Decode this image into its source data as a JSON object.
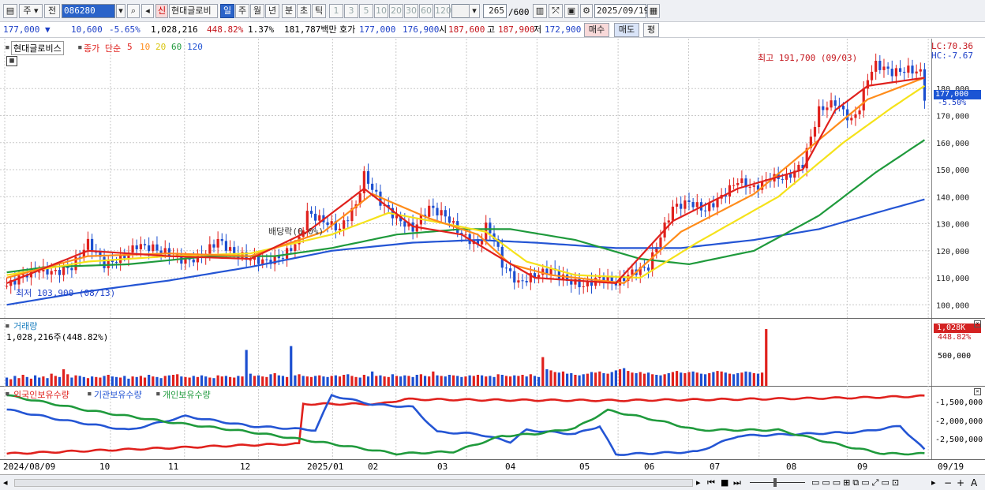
{
  "toolbar": {
    "mode1": "주",
    "mode2": "전",
    "code": "086280",
    "stock_name": "현대글로비",
    "tag": "신",
    "periods": [
      "일",
      "주",
      "월",
      "년",
      "분",
      "초",
      "틱"
    ],
    "minutes": [
      "1",
      "3",
      "5",
      "10",
      "20",
      "30",
      "60",
      "120"
    ],
    "count": "265",
    "count_max": "/600",
    "date": "2025/09/19"
  },
  "quote": {
    "price": "177,000",
    "arrow": "▼",
    "change": "10,600",
    "change_pct": "-5.65%",
    "volume": "1,028,216",
    "vol_ratio": "448.82%",
    "turnover": "1.37%",
    "amount": "181,787백만",
    "hoga_label": "호가",
    "ask": "177,000",
    "bid": "176,900",
    "open_label": "시",
    "open": "187,600",
    "high_label": "고",
    "high": "187,900",
    "low_label": "저",
    "low": "172,900",
    "buy_button": "매수",
    "sell_button": "매도",
    "eval_button": "평"
  },
  "price_panel": {
    "name": "현대글로비스",
    "legend_label": "종가 단순",
    "ma_periods": [
      "5",
      "10",
      "20",
      "60",
      "120"
    ],
    "ma_colors": [
      "#e0211d",
      "#ff8c1a",
      "#f5e21a",
      "#1f9a3c",
      "#2455d4"
    ],
    "lc": "LC:70.36",
    "hc": "HC:-7.67",
    "current": "177,000",
    "current_pct": "-5.50%",
    "max_label": "최고 191,700 (09/03)",
    "min_label": "최저 103,900 (08/13)",
    "dividend_label": "배당락(0.0%)",
    "y_ticks": [
      "180,000",
      "170,000",
      "160,000",
      "150,000",
      "140,000",
      "130,000",
      "120,000",
      "110,000",
      "100,000"
    ]
  },
  "volume_panel": {
    "title": "거래량",
    "info": "1,028,216주(448.82%)",
    "current": "1,028K",
    "current_pct": "448.82%",
    "tick": "500,000"
  },
  "holding_panel": {
    "series_labels": [
      "외국인보유수량",
      "기관보유수량",
      "개인보유수량"
    ],
    "series_colors": [
      "#e0211d",
      "#2455d4",
      "#1f9a3c"
    ],
    "ticks": [
      "-1,500,000",
      "-2,000,000",
      "-2,500,000"
    ]
  },
  "x_axis": {
    "labels": [
      "2024/08/09",
      "10",
      "11",
      "12",
      "2025/01",
      "02",
      "03",
      "04",
      "05",
      "06",
      "07",
      "08",
      "09"
    ],
    "end_label": "09/19"
  },
  "chart_data": {
    "type": "candlestick",
    "title": "현대글로비스",
    "ylim": [
      96000,
      197000
    ],
    "y_ticks": [
      100000,
      110000,
      120000,
      130000,
      140000,
      150000,
      160000,
      170000,
      180000
    ],
    "months": [
      "2024/08",
      "10",
      "11",
      "12",
      "2025/01",
      "02",
      "03",
      "04",
      "05",
      "06",
      "07",
      "08",
      "09"
    ],
    "close_path": [
      [
        0,
        107000
      ],
      [
        4,
        111000
      ],
      [
        8,
        113000
      ],
      [
        12,
        112000
      ],
      [
        16,
        114000
      ],
      [
        20,
        123000
      ],
      [
        24,
        115000
      ],
      [
        28,
        117000
      ],
      [
        32,
        122000
      ],
      [
        36,
        121000
      ],
      [
        40,
        119000
      ],
      [
        44,
        116000
      ],
      [
        48,
        118000
      ],
      [
        52,
        124000
      ],
      [
        56,
        119000
      ],
      [
        60,
        117000
      ],
      [
        64,
        116000
      ],
      [
        68,
        118000
      ],
      [
        72,
        124000
      ],
      [
        74,
        134000
      ],
      [
        78,
        131000
      ],
      [
        82,
        128000
      ],
      [
        86,
        137000
      ],
      [
        88,
        148000
      ],
      [
        92,
        138000
      ],
      [
        96,
        132000
      ],
      [
        100,
        128000
      ],
      [
        104,
        136000
      ],
      [
        108,
        133000
      ],
      [
        112,
        126000
      ],
      [
        116,
        122000
      ],
      [
        118,
        129000
      ],
      [
        120,
        125000
      ],
      [
        122,
        115000
      ],
      [
        126,
        108000
      ],
      [
        130,
        111000
      ],
      [
        134,
        113000
      ],
      [
        138,
        109000
      ],
      [
        142,
        107000
      ],
      [
        146,
        110000
      ],
      [
        150,
        108000
      ],
      [
        154,
        112000
      ],
      [
        158,
        114000
      ],
      [
        160,
        122000
      ],
      [
        164,
        136000
      ],
      [
        168,
        138000
      ],
      [
        172,
        135000
      ],
      [
        176,
        140000
      ],
      [
        180,
        146000
      ],
      [
        184,
        143000
      ],
      [
        188,
        147000
      ],
      [
        192,
        147000
      ],
      [
        196,
        152000
      ],
      [
        200,
        172000
      ],
      [
        204,
        175000
      ],
      [
        208,
        168000
      ],
      [
        210,
        173000
      ],
      [
        212,
        184000
      ],
      [
        214,
        189000
      ],
      [
        218,
        186000
      ],
      [
        222,
        187000
      ],
      [
        225,
        186000
      ],
      [
        226,
        177000
      ]
    ],
    "ma5": [
      [
        0,
        108000
      ],
      [
        20,
        120000
      ],
      [
        40,
        118000
      ],
      [
        60,
        117000
      ],
      [
        74,
        127000
      ],
      [
        88,
        143000
      ],
      [
        100,
        129000
      ],
      [
        112,
        126000
      ],
      [
        122,
        117000
      ],
      [
        130,
        110000
      ],
      [
        150,
        108000
      ],
      [
        164,
        131000
      ],
      [
        180,
        143000
      ],
      [
        196,
        150000
      ],
      [
        204,
        172000
      ],
      [
        212,
        181000
      ],
      [
        226,
        184000
      ]
    ],
    "ma10": [
      [
        0,
        110000
      ],
      [
        20,
        118000
      ],
      [
        40,
        119000
      ],
      [
        60,
        118000
      ],
      [
        78,
        127000
      ],
      [
        90,
        141000
      ],
      [
        104,
        132000
      ],
      [
        116,
        126000
      ],
      [
        124,
        115000
      ],
      [
        134,
        111000
      ],
      [
        152,
        108000
      ],
      [
        166,
        127000
      ],
      [
        184,
        141000
      ],
      [
        200,
        161000
      ],
      [
        212,
        176000
      ],
      [
        226,
        184000
      ]
    ],
    "ma20": [
      [
        0,
        111000
      ],
      [
        20,
        116000
      ],
      [
        40,
        118000
      ],
      [
        60,
        119000
      ],
      [
        80,
        126000
      ],
      [
        94,
        134000
      ],
      [
        108,
        130000
      ],
      [
        118,
        127000
      ],
      [
        128,
        116000
      ],
      [
        140,
        111000
      ],
      [
        156,
        110000
      ],
      [
        170,
        123000
      ],
      [
        190,
        140000
      ],
      [
        206,
        160000
      ],
      [
        218,
        173000
      ],
      [
        226,
        181000
      ]
    ],
    "ma60": [
      [
        0,
        112000
      ],
      [
        10,
        114000
      ],
      [
        30,
        115000
      ],
      [
        50,
        118000
      ],
      [
        66,
        118000
      ],
      [
        80,
        121000
      ],
      [
        96,
        126000
      ],
      [
        112,
        128000
      ],
      [
        124,
        128000
      ],
      [
        140,
        124000
      ],
      [
        156,
        117000
      ],
      [
        168,
        115000
      ],
      [
        184,
        120000
      ],
      [
        200,
        133000
      ],
      [
        214,
        149000
      ],
      [
        226,
        161000
      ]
    ],
    "ma120": [
      [
        0,
        100000
      ],
      [
        20,
        105000
      ],
      [
        40,
        109000
      ],
      [
        60,
        114000
      ],
      [
        80,
        120000
      ],
      [
        100,
        123000
      ],
      [
        116,
        124000
      ],
      [
        130,
        123000
      ],
      [
        150,
        121000
      ],
      [
        166,
        121000
      ],
      [
        184,
        124000
      ],
      [
        200,
        128000
      ],
      [
        214,
        134000
      ],
      [
        226,
        139000
      ]
    ],
    "volume_k": [
      150,
      120,
      180,
      140,
      200,
      160,
      130,
      190,
      150,
      170,
      140,
      220,
      180,
      160,
      300,
      210,
      150,
      190,
      180,
      160,
      140,
      170,
      160,
      150,
      180,
      200,
      170,
      160,
      150,
      180,
      130,
      170,
      160,
      180,
      150,
      200,
      170,
      160,
      140,
      180,
      190,
      200,
      210,
      170,
      160,
      150,
      180,
      160,
      190,
      170,
      150,
      140,
      190,
      170,
      180,
      160,
      150,
      180,
      170,
      650,
      220,
      180,
      190,
      170,
      160,
      210,
      230,
      190,
      180,
      160,
      720,
      190,
      210,
      180,
      170,
      160,
      180,
      190,
      170,
      160,
      180,
      190,
      170,
      200,
      210,
      180,
      160,
      150,
      200,
      170,
      260,
      180,
      190,
      170,
      160,
      210,
      180,
      170,
      190,
      180,
      160,
      200,
      210,
      180,
      170,
      260,
      190,
      180,
      170,
      200,
      190,
      180,
      160,
      170,
      190,
      180,
      200,
      190,
      170,
      180,
      160,
      210,
      200,
      180,
      170,
      190,
      180,
      200,
      170,
      210,
      180,
      160,
      520,
      300,
      280,
      250,
      240,
      260,
      220,
      230,
      200,
      190,
      210,
      220,
      250,
      240,
      260,
      230,
      220,
      250,
      280,
      300,
      320,
      270,
      240,
      230,
      250,
      220,
      240,
      210,
      200,
      190,
      210,
      230,
      250,
      270,
      240,
      230,
      250,
      260,
      240,
      220,
      210,
      230,
      250,
      270,
      260,
      240,
      220,
      210,
      230,
      240,
      260,
      250,
      230,
      220,
      240,
      1028
    ]
  },
  "holdings": {
    "foreign": [
      [
        0,
        -2.9
      ],
      [
        60,
        -2.68
      ],
      [
        72,
        -2.65
      ],
      [
        73,
        -1.64
      ],
      [
        92,
        -1.64
      ],
      [
        98,
        -1.52
      ],
      [
        120,
        -1.54
      ],
      [
        150,
        -1.55
      ],
      [
        180,
        -1.52
      ],
      [
        210,
        -1.48
      ],
      [
        226,
        -1.44
      ]
    ],
    "institution": [
      [
        0,
        -1.78
      ],
      [
        14,
        -2.05
      ],
      [
        30,
        -2.3
      ],
      [
        44,
        -1.95
      ],
      [
        60,
        -2.2
      ],
      [
        76,
        -2.3
      ],
      [
        80,
        -1.42
      ],
      [
        90,
        -1.65
      ],
      [
        100,
        -1.72
      ],
      [
        106,
        -2.35
      ],
      [
        116,
        -2.4
      ],
      [
        124,
        -2.6
      ],
      [
        128,
        -2.3
      ],
      [
        140,
        -2.4
      ],
      [
        146,
        -2.2
      ],
      [
        150,
        -2.92
      ],
      [
        170,
        -2.85
      ],
      [
        180,
        -2.45
      ],
      [
        196,
        -2.4
      ],
      [
        210,
        -2.35
      ],
      [
        220,
        -2.2
      ],
      [
        226,
        -2.8
      ]
    ],
    "individual": [
      [
        0,
        -1.42
      ],
      [
        20,
        -1.8
      ],
      [
        40,
        -2.1
      ],
      [
        60,
        -2.35
      ],
      [
        80,
        -2.65
      ],
      [
        96,
        -2.9
      ],
      [
        110,
        -2.85
      ],
      [
        122,
        -2.45
      ],
      [
        130,
        -2.4
      ],
      [
        140,
        -2.25
      ],
      [
        148,
        -1.8
      ],
      [
        160,
        -2.05
      ],
      [
        170,
        -2.3
      ],
      [
        190,
        -2.3
      ],
      [
        206,
        -2.7
      ],
      [
        216,
        -2.9
      ],
      [
        226,
        -2.9
      ]
    ]
  }
}
